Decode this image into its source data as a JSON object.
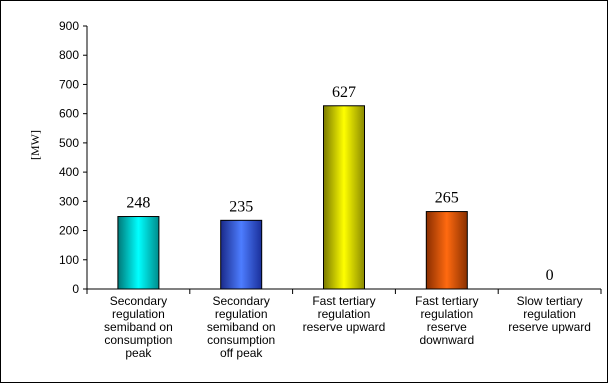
{
  "chart_data": {
    "type": "bar",
    "ylabel": "[MW]",
    "ylim": [
      0,
      900
    ],
    "yticks": [
      0,
      100,
      200,
      300,
      400,
      500,
      600,
      700,
      800,
      900
    ],
    "grid": false,
    "legend": "none",
    "categories": [
      [
        "Secondary",
        "regulation",
        "semiband on",
        "consumption",
        "peak"
      ],
      [
        "Secondary",
        "regulation",
        "semiband on",
        "consumption",
        "off peak"
      ],
      [
        "Fast tertiary",
        "regulation",
        "reserve upward"
      ],
      [
        "Fast tertiary",
        "regulation",
        "reserve",
        "downward"
      ],
      [
        "Slow tertiary",
        "regulation",
        "reserve upward"
      ]
    ],
    "values": [
      248,
      235,
      627,
      265,
      0
    ],
    "colors": [
      "#00e0e0",
      "#3a64ff",
      "#e6e600",
      "#ff6a10",
      "#cccccc"
    ]
  }
}
